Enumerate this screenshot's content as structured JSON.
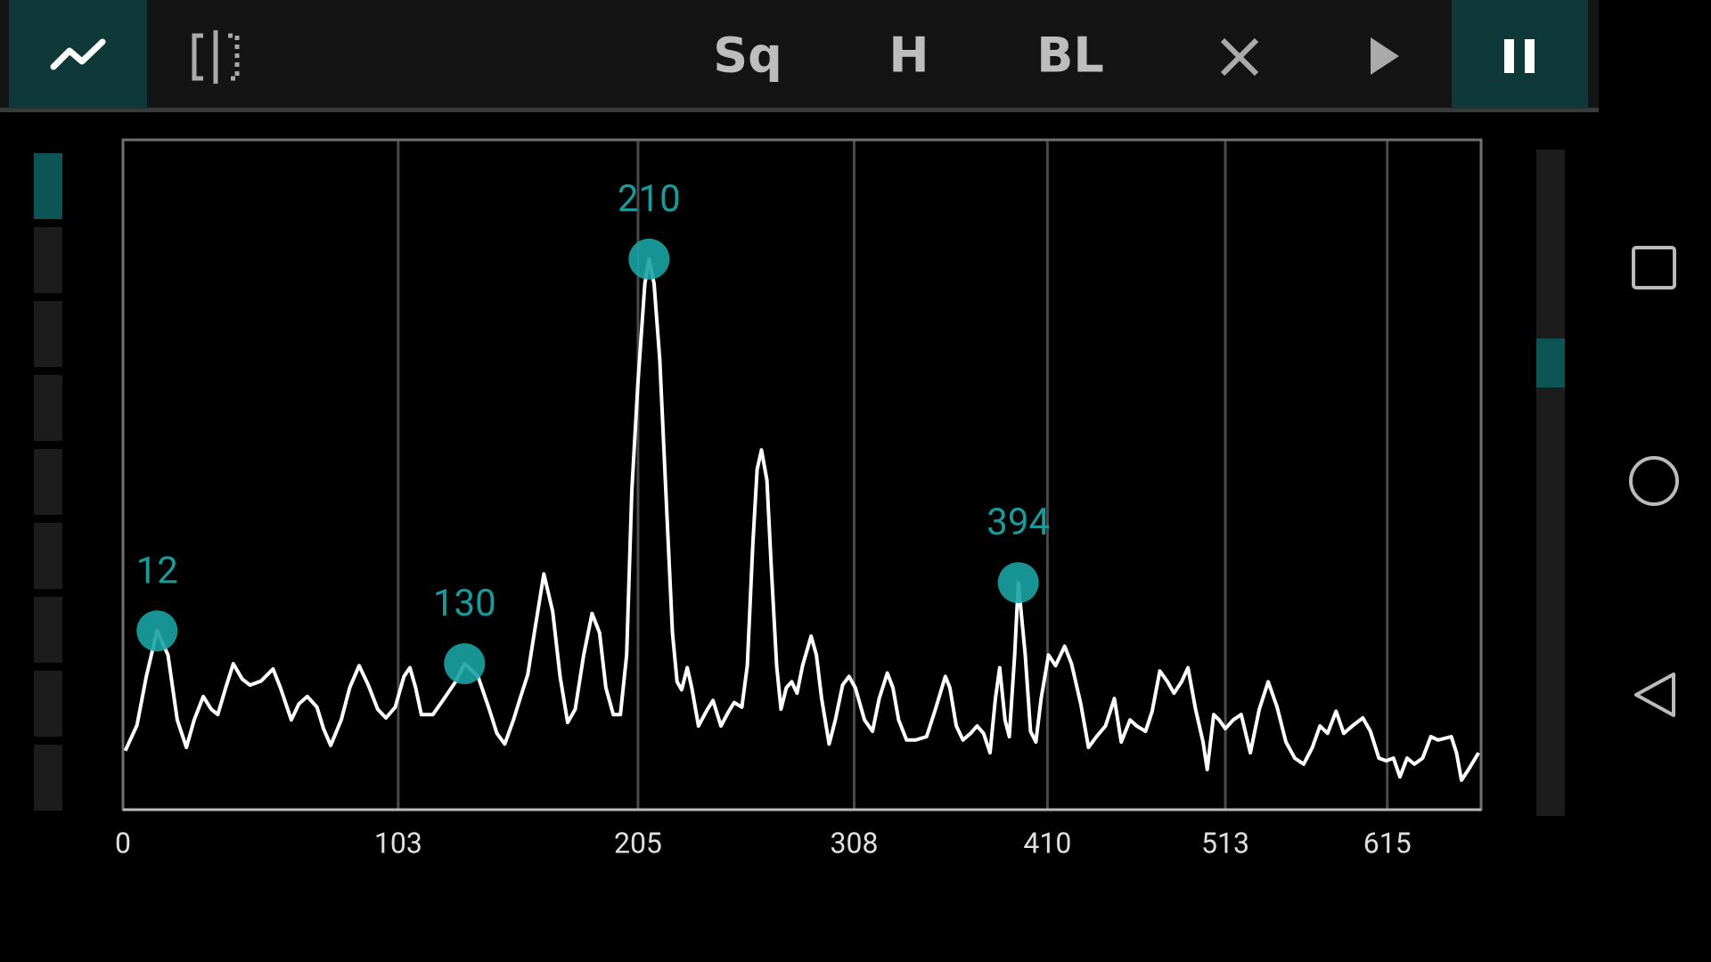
{
  "toolbar": {
    "buttons": [
      "Sq",
      "H",
      "BL"
    ]
  },
  "chart_data": {
    "type": "line",
    "xscale": "mel",
    "color": "#ffffff",
    "marker_color": "#1aa3a3",
    "grid": true,
    "xlim": [
      0,
      678
    ],
    "ylim": [
      0,
      100
    ],
    "xticks": [
      0,
      103,
      205,
      308,
      410,
      513,
      615
    ],
    "x": [
      0.8,
      4.9,
      8.2,
      12.0,
      15.9,
      19.2,
      22.5,
      25.3,
      28.6,
      31.5,
      33.9,
      36.8,
      39.6,
      42.9,
      45.8,
      49.9,
      54.4,
      57.2,
      61.3,
      64.2,
      67.4,
      71.1,
      73.6,
      76.4,
      80.5,
      83.8,
      87.5,
      91.1,
      94.8,
      98.1,
      101.8,
      105.3,
      107.7,
      110.0,
      112.3,
      117.0,
      121.6,
      126.3,
      130.0,
      135.6,
      140.3,
      143.5,
      146.8,
      150.5,
      153.3,
      156.6,
      159.4,
      163.5,
      167.3,
      170.5,
      173.8,
      177.1,
      180.8,
      184.5,
      187.8,
      190.6,
      193.9,
      197.1,
      199.9,
      202.2,
      205.0,
      208.1,
      210.0,
      212.3,
      214.9,
      218.1,
      220.7,
      222.8,
      224.9,
      227.5,
      229.6,
      232.7,
      236.9,
      239.5,
      243.2,
      246.9,
      249.5,
      253.1,
      255.7,
      258.3,
      260.4,
      262.5,
      265.1,
      267.2,
      269.8,
      271.9,
      274.5,
      277.1,
      279.7,
      282.4,
      286.6,
      289.2,
      291.8,
      295.5,
      298.6,
      302.2,
      305.4,
      308.6,
      313.2,
      317.3,
      320.7,
      324.8,
      327.7,
      330.6,
      334.7,
      339.3,
      345.1,
      349.7,
      354.9,
      357.3,
      360.7,
      364.2,
      368.3,
      371.7,
      375.2,
      378.7,
      381.6,
      383.9,
      386.8,
      389.1,
      392.0,
      394.0,
      397.8,
      400.7,
      403.6,
      406.5,
      410.6,
      414.5,
      419.6,
      423.4,
      428.6,
      433.0,
      437.5,
      442.6,
      447.7,
      451.6,
      456.7,
      460.5,
      465.7,
      469.5,
      474.0,
      478.5,
      482.3,
      486.8,
      490.6,
      495.1,
      499.6,
      502.1,
      506.0,
      509.2,
      513.0,
      517.8,
      522.6,
      528.2,
      533.7,
      539.2,
      544.7,
      550.2,
      555.7,
      561.3,
      566.8,
      571.6,
      576.4,
      581.9,
      586.8,
      592.3,
      599.1,
      604.0,
      609.5,
      614.3,
      619.1,
      623.3,
      628.1,
      632.9,
      638.4,
      643.9,
      648.8,
      657.7,
      661.2,
      664.6,
      669.4,
      676.3
    ],
    "values": [
      8.8,
      12.6,
      19.9,
      26.7,
      23.1,
      13.4,
      9.3,
      13.4,
      16.9,
      15.0,
      14.2,
      18.2,
      21.8,
      19.5,
      18.6,
      19.2,
      21.0,
      18.2,
      13.4,
      15.8,
      16.9,
      15.3,
      12.1,
      9.6,
      13.4,
      18.2,
      21.5,
      18.6,
      15.0,
      13.7,
      15.3,
      19.9,
      21.2,
      18.2,
      14.2,
      14.2,
      16.6,
      19.1,
      21.8,
      19.9,
      15.0,
      11.4,
      9.8,
      13.4,
      16.6,
      20.2,
      26.4,
      35.2,
      29.6,
      19.9,
      13.0,
      15.0,
      23.1,
      29.3,
      26.4,
      18.2,
      14.2,
      14.2,
      23.1,
      47.6,
      63.8,
      78.5,
      82.2,
      78.5,
      67.1,
      44.3,
      26.4,
      19.1,
      17.9,
      21.2,
      18.2,
      12.5,
      15.0,
      16.3,
      12.5,
      14.7,
      16.0,
      15.3,
      21.5,
      39.4,
      50.8,
      53.7,
      49.2,
      36.2,
      21.5,
      15.0,
      18.2,
      19.1,
      17.4,
      21.5,
      25.9,
      23.1,
      16.6,
      9.8,
      13.4,
      18.6,
      19.9,
      18.2,
      13.4,
      11.7,
      16.6,
      20.4,
      18.2,
      13.4,
      10.4,
      10.4,
      10.9,
      15.0,
      19.9,
      18.2,
      12.5,
      10.4,
      11.4,
      12.5,
      11.4,
      8.5,
      16.6,
      21.2,
      13.4,
      10.9,
      23.1,
      33.9,
      23.1,
      11.7,
      10.1,
      16.6,
      23.1,
      21.5,
      24.4,
      21.8,
      15.8,
      9.3,
      10.9,
      12.5,
      16.6,
      10.1,
      13.4,
      12.5,
      11.7,
      14.7,
      20.7,
      19.1,
      17.4,
      19.1,
      21.2,
      15.0,
      10.1,
      6.0,
      14.2,
      13.4,
      12.1,
      13.4,
      14.2,
      8.5,
      15.0,
      19.1,
      15.3,
      10.1,
      7.7,
      6.8,
      9.3,
      12.5,
      11.4,
      14.7,
      11.4,
      12.5,
      13.7,
      11.7,
      7.7,
      7.3,
      7.7,
      4.9,
      7.7,
      6.8,
      7.7,
      10.9,
      10.4,
      10.9,
      8.5,
      4.4,
      6.0,
      8.5
    ],
    "peaks": [
      {
        "x": 12,
        "value": 26.7
      },
      {
        "x": 130,
        "value": 21.8
      },
      {
        "x": 210,
        "value": 82.2
      },
      {
        "x": 394,
        "value": 33.9
      }
    ]
  }
}
